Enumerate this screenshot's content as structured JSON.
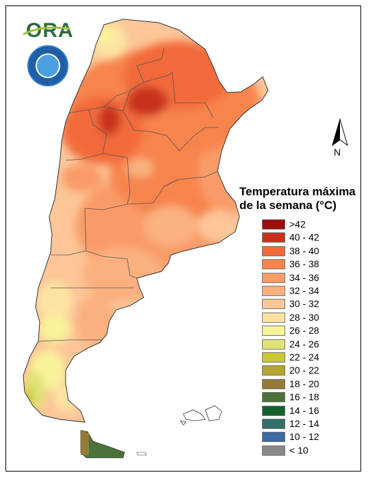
{
  "logo": {
    "text": "ORA",
    "seal_name": "seal-icon"
  },
  "north_arrow": {
    "letter": "N"
  },
  "legend": {
    "title_line1": "Temperatura máxima",
    "title_line2": "de la semana (°C)",
    "items": [
      {
        "label": ">42",
        "color": "#9b0e0e"
      },
      {
        "label": "40 - 42",
        "color": "#c8321c"
      },
      {
        "label": "38 - 40",
        "color": "#f26a3a"
      },
      {
        "label": "36 - 38",
        "color": "#f7844d"
      },
      {
        "label": "34 - 36",
        "color": "#f99b67"
      },
      {
        "label": "32 - 34",
        "color": "#fab07f"
      },
      {
        "label": "30 - 32",
        "color": "#fcc698"
      },
      {
        "label": "28 - 30",
        "color": "#fde3a3"
      },
      {
        "label": "26 - 28",
        "color": "#f8f39a"
      },
      {
        "label": "24 - 26",
        "color": "#e0e274"
      },
      {
        "label": "22 - 24",
        "color": "#c9c938"
      },
      {
        "label": "20 - 22",
        "color": "#b5a42f"
      },
      {
        "label": "18 - 20",
        "color": "#947b37"
      },
      {
        "label": "16 - 18",
        "color": "#4b7339"
      },
      {
        "label": "14 - 16",
        "color": "#12612b"
      },
      {
        "label": "12 - 14",
        "color": "#32706a"
      },
      {
        "label": "10 - 12",
        "color": "#3c6aa2"
      },
      {
        "label": "< 10",
        "color": "#888888"
      }
    ]
  }
}
